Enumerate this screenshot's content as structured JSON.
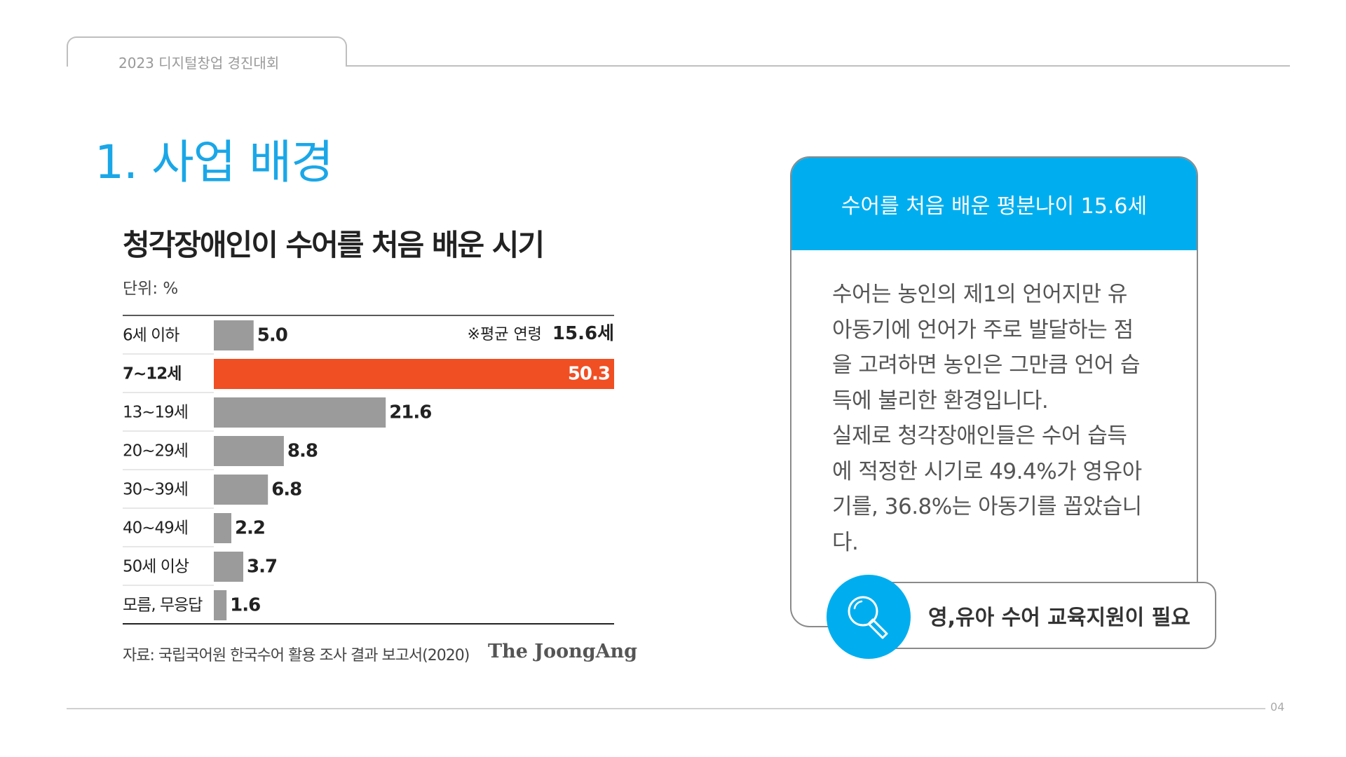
{
  "header": {
    "tab_label": "2023 디지털창업 경진대회",
    "page_number": "04"
  },
  "page_title": "1. 사업 배경",
  "chart_data": {
    "type": "bar",
    "orientation": "horizontal",
    "title": "청각장애인이 수어를 처음 배운 시기",
    "unit": "단위: %",
    "categories": [
      "6세 이하",
      "7~12세",
      "13~19세",
      "20~29세",
      "30~39세",
      "40~49세",
      "50세 이상",
      "모름, 무응답"
    ],
    "values": [
      5.0,
      50.3,
      21.6,
      8.8,
      6.8,
      2.2,
      3.7,
      1.6
    ],
    "value_labels": [
      "5.0",
      "50.3",
      "21.6",
      "8.8",
      "6.8",
      "2.2",
      "3.7",
      "1.6"
    ],
    "highlight_index": 1,
    "bar_color": "#9b9b9b",
    "highlight_color": "#f04e23",
    "xlim": [
      0,
      50.3
    ],
    "annotation_prefix": "※평균 연령",
    "annotation_value": "15.6세",
    "source": "자료: 국립국어원 한국수어 활용 조사 결과 보고서(2020)",
    "brand": "The JoongAng"
  },
  "card": {
    "header": "수어를 처음 배운 평분나이 15.6세",
    "body": "수어는 농인의 제1의 언어지만 유\n아동기에 언어가 주로 발달하는 점\n을 고려하면 농인은 그만큼 언어 습\n득에 불리한 환경입니다.\n실제로 청각장애인들은 수어 습득\n에 적정한 시기로 49.4%가 영유아\n기를, 36.8%는 아동기를 꼽았습니\n다.",
    "accent_color": "#00aeef"
  },
  "callout": {
    "icon": "search-icon",
    "text": "영,유아 수어 교육지원이 필요"
  }
}
